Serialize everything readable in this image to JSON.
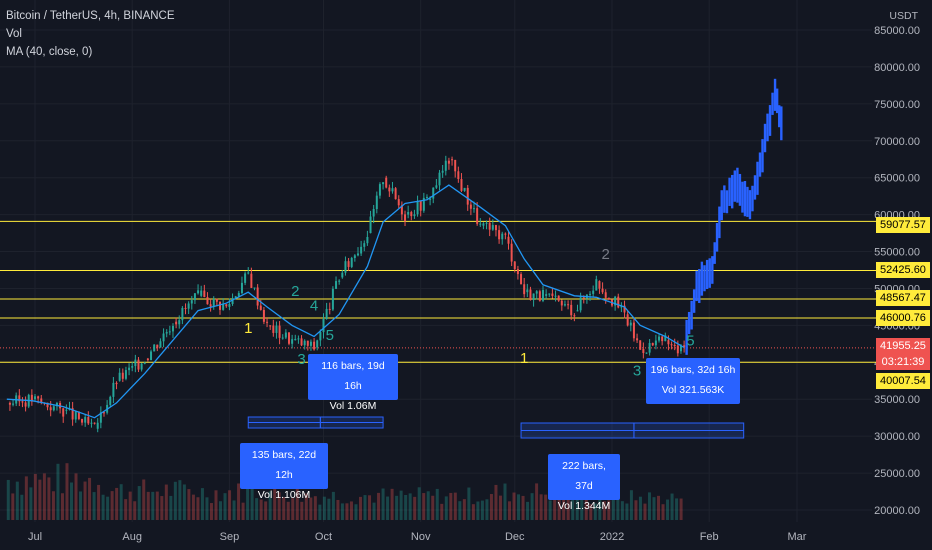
{
  "header": {
    "symbol": "Bitcoin / TetherUS, 4h, BINANCE",
    "indicator_1": "Vol",
    "indicator_2": "MA (40, close, 0)"
  },
  "axis": {
    "unit": "USDT",
    "y_ticks": [
      "85000.00",
      "80000.00",
      "75000.00",
      "70000.00",
      "65000.00",
      "60000.00",
      "55000.00",
      "50000.00",
      "45000.00",
      "40000.00",
      "35000.00",
      "30000.00",
      "25000.00",
      "20000.00"
    ],
    "x_ticks": [
      "Jul",
      "Aug",
      "Sep",
      "Oct",
      "Nov",
      "Dec",
      "2022",
      "Feb",
      "Mar"
    ]
  },
  "price_tags": {
    "level_59077": "59077.57",
    "level_52425": "52425.60",
    "level_48567": "48567.47",
    "level_46000": "46000.76",
    "last_price": "41955.25",
    "countdown": "03:21:39",
    "level_40007": "40007.54"
  },
  "wave_labels": {
    "a1": "1",
    "a2": "2",
    "a3": "3",
    "a4": "4",
    "a5": "5",
    "b1": "1",
    "b2": "2",
    "b3": "3",
    "b5": "5"
  },
  "measure_boxes": {
    "m1_line1": "135 bars, 22d 12h",
    "m1_line2": "Vol 1.106M",
    "m2_line1": "116 bars, 19d 16h",
    "m2_line2": "Vol 1.06M",
    "m3_line1": "222 bars, 37d",
    "m3_line2": "Vol 1.344M",
    "m4_line1": "196 bars, 32d 16h",
    "m4_line2": "Vol 321.563K"
  },
  "colors": {
    "background": "#131722",
    "up": "#26a69a",
    "down": "#ef5350",
    "ma": "#2196f3",
    "levels": "#ffeb3b",
    "projection": "#2962ff"
  },
  "chart_data": {
    "type": "line",
    "title": "Bitcoin / TetherUS, 4h, BINANCE",
    "xlabel": "",
    "ylabel": "",
    "x_ticks": [
      "Jul",
      "Aug",
      "Sep",
      "Oct",
      "Nov",
      "Dec",
      "2022",
      "Feb",
      "Mar"
    ],
    "ylim": [
      19000,
      86000
    ],
    "grid": true,
    "horizontal_levels": [
      59077.57,
      52425.6,
      48567.47,
      46000.76,
      40007.54
    ],
    "last_price": 41955.25,
    "series": [
      {
        "x": [
          "2021-06-22",
          "2021-06-30",
          "2021-07-10",
          "2021-07-20",
          "2021-07-27",
          "2021-08-05",
          "2021-08-14",
          "2021-08-22",
          "2021-08-31",
          "2021-09-07",
          "2021-09-13",
          "2021-09-21",
          "2021-09-28",
          "2021-10-06",
          "2021-10-15",
          "2021-10-20",
          "2021-10-27",
          "2021-11-03",
          "2021-11-10",
          "2021-11-20",
          "2021-11-28",
          "2021-12-04",
          "2021-12-10",
          "2021-12-20",
          "2021-12-27",
          "2022-01-05",
          "2022-01-10",
          "2022-01-18",
          "2022-01-22",
          "2022-01-24"
        ],
        "values": [
          34500,
          35000,
          33500,
          31000,
          37500,
          40500,
          45500,
          49000,
          47500,
          52000,
          45000,
          43000,
          42000,
          51500,
          57500,
          65000,
          60000,
          62000,
          67500,
          58500,
          57000,
          49500,
          49000,
          47000,
          51000,
          46500,
          41800,
          43000,
          41500,
          41955
        ]
      },
      {
        "x": [
          "2022-01-24",
          "2022-01-28",
          "2022-02-02",
          "2022-02-05",
          "2022-02-10",
          "2022-02-14",
          "2022-02-18",
          "2022-02-22",
          "2022-02-24"
        ],
        "values": [
          41955,
          50000,
          53000,
          61000,
          64000,
          61000,
          68000,
          76500,
          72000
        ]
      }
    ],
    "ma": {
      "values": [
        35000,
        34800,
        34000,
        32500,
        34500,
        38500,
        43000,
        47000,
        48000,
        49500,
        47500,
        45000,
        43500,
        46500,
        53000,
        59000,
        61500,
        62000,
        64000,
        61000,
        58500,
        54000,
        50500,
        49000,
        48800,
        47500,
        45000,
        43500,
        42500,
        42000
      ]
    },
    "volume": {
      "labels": [
        "Jul",
        "Aug",
        "Sep",
        "Oct",
        "Nov",
        "Dec",
        "2022"
      ],
      "values": [
        0.9,
        0.6,
        0.55,
        0.45,
        0.45,
        0.55,
        0.4
      ]
    }
  }
}
